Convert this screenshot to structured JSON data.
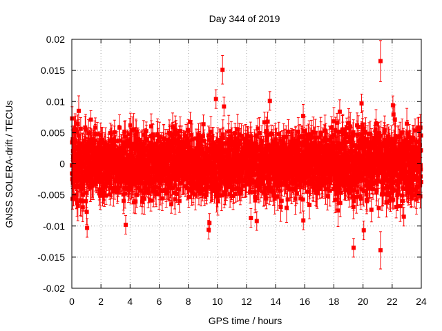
{
  "chart_data": {
    "type": "scatter",
    "title": "Day 344 of 2019",
    "xlabel": "GPS time / hours",
    "ylabel": "GNSS SOLERA-drift / TECUs",
    "xlim": [
      0,
      24
    ],
    "ylim": [
      -0.02,
      0.02
    ],
    "x_ticks": [
      0,
      2,
      4,
      6,
      8,
      10,
      12,
      14,
      16,
      18,
      20,
      22,
      24
    ],
    "x_tick_labels": [
      "0",
      "2",
      "4",
      "6",
      "8",
      "10",
      "12",
      "14",
      "16",
      "18",
      "20",
      "22",
      "24"
    ],
    "y_ticks": [
      -0.02,
      -0.015,
      -0.01,
      -0.005,
      0,
      0.005,
      0.01,
      0.015,
      0.02
    ],
    "y_tick_labels": [
      "-0.02",
      "-0.015",
      "-0.01",
      "-0.005",
      "0",
      "0.005",
      "0.01",
      "0.015",
      "0.02"
    ],
    "grid": true,
    "series": [
      {
        "name": "SOLERA drift",
        "color": "#ff0000",
        "marker": "square",
        "error_bars": true,
        "sampling_interval_hours": 0.0083333,
        "typical_spread": 0.0025,
        "typical_error": 0.002,
        "notable_points": [
          {
            "x": 1.05,
            "y": -0.0103,
            "err": 0.0015
          },
          {
            "x": 3.7,
            "y": -0.0098,
            "err": 0.0015
          },
          {
            "x": 9.4,
            "y": -0.0106,
            "err": 0.0015
          },
          {
            "x": 9.45,
            "y": -0.0095,
            "err": 0.0015
          },
          {
            "x": 9.9,
            "y": 0.0104,
            "err": 0.0015
          },
          {
            "x": 10.35,
            "y": 0.0151,
            "err": 0.0023
          },
          {
            "x": 10.45,
            "y": 0.0092,
            "err": 0.0015
          },
          {
            "x": 12.3,
            "y": -0.0087,
            "err": 0.0015
          },
          {
            "x": 12.7,
            "y": -0.0092,
            "err": 0.0015
          },
          {
            "x": 13.6,
            "y": 0.0101,
            "err": 0.0015
          },
          {
            "x": 15.9,
            "y": -0.0091,
            "err": 0.0015
          },
          {
            "x": 19.35,
            "y": -0.0135,
            "err": 0.0015
          },
          {
            "x": 19.9,
            "y": 0.0097,
            "err": 0.0015
          },
          {
            "x": 20.05,
            "y": -0.0107,
            "err": 0.0015
          },
          {
            "x": 21.2,
            "y": 0.0165,
            "err": 0.0033
          },
          {
            "x": 21.2,
            "y": -0.0139,
            "err": 0.003
          },
          {
            "x": 22.05,
            "y": 0.0094,
            "err": 0.0015
          },
          {
            "x": 22.8,
            "y": -0.0085,
            "err": 0.0015
          }
        ]
      }
    ]
  }
}
